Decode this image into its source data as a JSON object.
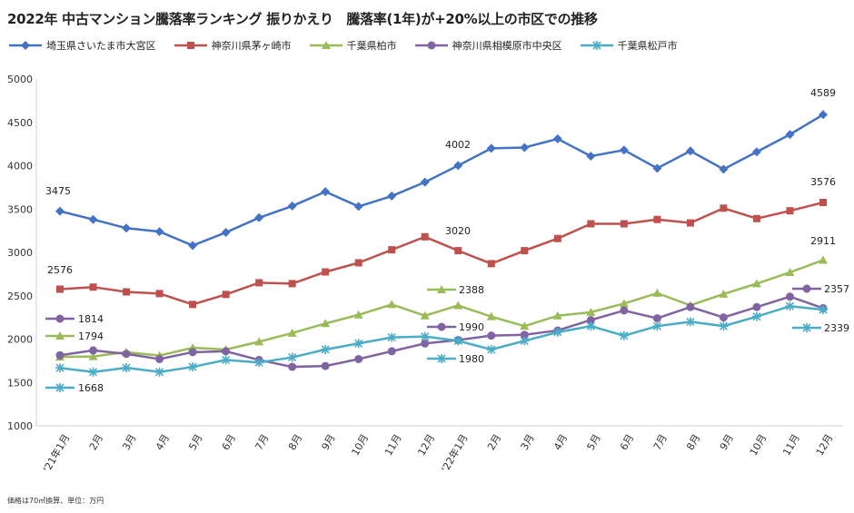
{
  "chart_data": {
    "type": "line",
    "title": "2022年 中古マンション騰落率ランキング 振りかえり　騰落率(1年)が+20%以上の市区での推移",
    "categories": [
      "'21年1月",
      "2月",
      "3月",
      "4月",
      "5月",
      "6月",
      "7月",
      "8月",
      "9月",
      "10月",
      "11月",
      "12月",
      "'22年1月",
      "2月",
      "3月",
      "4月",
      "5月",
      "6月",
      "7月",
      "8月",
      "9月",
      "10月",
      "11月",
      "12月"
    ],
    "ylim": [
      1000,
      5000
    ],
    "yticks": [
      1000,
      1500,
      2000,
      2500,
      3000,
      3500,
      4000,
      4500,
      5000
    ],
    "grid": false,
    "legend_position": "top",
    "series": [
      {
        "name": "埼玉県さいたま市大宮区",
        "color": "#4472C4",
        "marker": "diamond",
        "values": [
          3475,
          3380,
          3280,
          3240,
          3080,
          3230,
          3400,
          3535,
          3700,
          3530,
          3650,
          3810,
          4002,
          4200,
          4210,
          4310,
          4110,
          4180,
          3970,
          4170,
          3960,
          4160,
          4360,
          4589
        ]
      },
      {
        "name": "神奈川県茅ヶ崎市",
        "color": "#C0504D",
        "marker": "square",
        "values": [
          2576,
          2600,
          2545,
          2525,
          2400,
          2515,
          2650,
          2640,
          2775,
          2880,
          3030,
          3180,
          3020,
          2870,
          3020,
          3160,
          3330,
          3330,
          3380,
          3340,
          3510,
          3390,
          3480,
          3576
        ]
      },
      {
        "name": "千葉県柏市",
        "color": "#9BBB59",
        "marker": "triangle",
        "values": [
          1794,
          1800,
          1850,
          1810,
          1900,
          1880,
          1970,
          2070,
          2180,
          2280,
          2400,
          2270,
          2388,
          2260,
          2150,
          2270,
          2310,
          2410,
          2530,
          2390,
          2520,
          2640,
          2770,
          2911
        ]
      },
      {
        "name": "神奈川県相模原市中央区",
        "color": "#8064A2",
        "marker": "circle",
        "values": [
          1814,
          1870,
          1830,
          1770,
          1850,
          1860,
          1760,
          1680,
          1690,
          1770,
          1860,
          1950,
          1990,
          2040,
          2050,
          2100,
          2220,
          2330,
          2240,
          2370,
          2250,
          2370,
          2490,
          2357
        ]
      },
      {
        "name": "千葉県松戸市",
        "color": "#4BACC6",
        "marker": "star",
        "values": [
          1668,
          1620,
          1670,
          1620,
          1680,
          1760,
          1730,
          1790,
          1880,
          1950,
          2020,
          2030,
          1980,
          1880,
          1980,
          2080,
          2150,
          2040,
          2150,
          2200,
          2150,
          2260,
          2380,
          2339
        ]
      }
    ],
    "annotations": [
      {
        "series": 0,
        "text": "3475",
        "label_value": 3475
      },
      {
        "series": 0,
        "text": "4002",
        "label_value": 4002
      },
      {
        "series": 0,
        "text": "4589",
        "label_value": 4589
      },
      {
        "series": 1,
        "text": "2576",
        "label_value": 2576
      },
      {
        "series": 1,
        "text": "3020",
        "label_value": 3020
      },
      {
        "series": 1,
        "text": "3576",
        "label_value": 3576
      },
      {
        "series": 2,
        "text": "1794",
        "label_value": 1794
      },
      {
        "series": 2,
        "text": "2388",
        "label_value": 2388
      },
      {
        "series": 2,
        "text": "2911",
        "label_value": 2911
      },
      {
        "series": 3,
        "text": "1814",
        "label_value": 1814
      },
      {
        "series": 3,
        "text": "1990",
        "label_value": 1990
      },
      {
        "series": 3,
        "text": "2357",
        "label_value": 2357
      },
      {
        "series": 4,
        "text": "1668",
        "label_value": 1668
      },
      {
        "series": 4,
        "text": "1980",
        "label_value": 1980
      },
      {
        "series": 4,
        "text": "2339",
        "label_value": 2339
      }
    ]
  },
  "footnote": "価格は70㎡換算、単位：万円"
}
